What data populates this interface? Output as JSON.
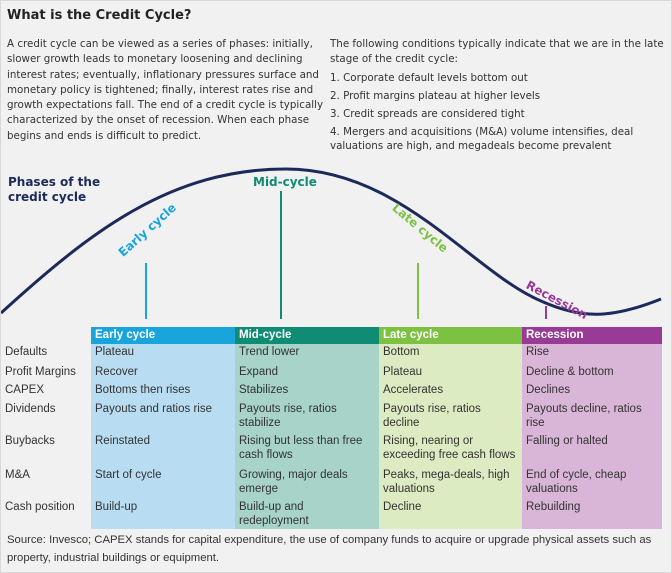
{
  "title": "What is the Credit Cycle?",
  "intro": "A credit cycle can be viewed as a series of phases: initially, slower growth leads to monetary loosening and declining interest rates; eventually, inflationary pressures surface and monetary policy is tightened; finally, interest rates rise and growth expectations fall. The end of a credit cycle is typically characterized by the onset of recession. When each phase begins and ends is difficult to predict.",
  "conditions": {
    "lead": "The following conditions typically indicate that we are in the late stage of the credit cycle:",
    "items": [
      "1. Corporate default levels bottom out",
      "2. Profit margins plateau at higher levels",
      "3. Credit spreads are considered tight",
      "4. Mergers and acquisitions (M&A) volume intensifies, deal valuations are high, and megadeals become prevalent"
    ]
  },
  "diagram": {
    "title": "Phases of the credit cycle",
    "phases": [
      {
        "label": "Early cycle",
        "color": "#19a4dc"
      },
      {
        "label": "Mid-cycle",
        "color": "#108b74"
      },
      {
        "label": "Late cycle",
        "color": "#7dc143"
      },
      {
        "label": "Recession",
        "color": "#993b96"
      }
    ],
    "curve_color": "#1c2a5a"
  },
  "table": {
    "headers": [
      "Early cycle",
      "Mid-cycle",
      "Late cycle",
      "Recession"
    ],
    "rows": [
      {
        "label": "Defaults",
        "cells": [
          "Plateau",
          "Trend lower",
          "Bottom",
          "Rise"
        ]
      },
      {
        "label": "Profit Margins",
        "cells": [
          "Recover",
          "Expand",
          "Plateau",
          "Decline & bottom"
        ]
      },
      {
        "label": "CAPEX",
        "cells": [
          "Bottoms then rises",
          "Stabilizes",
          "Accelerates",
          "Declines"
        ]
      },
      {
        "label": "Dividends",
        "cells": [
          "Payouts and ratios rise",
          "Payouts rise, ratios stabilize",
          "Payouts rise, ratios decline",
          "Payouts decline, ratios rise"
        ]
      },
      {
        "label": "Buybacks",
        "cells": [
          "Reinstated",
          "Rising but less than free cash flows",
          "Rising, nearing or exceeding free cash flows",
          "Falling or halted"
        ]
      },
      {
        "label": "M&A",
        "cells": [
          "Start of cycle",
          "Growing, major deals emerge",
          "Peaks, mega-deals, high valuations",
          "End of cycle, cheap valuations"
        ]
      },
      {
        "label": "Cash position",
        "cells": [
          "Build-up",
          "Build-up and redeployment",
          "Decline",
          "Rebuilding"
        ]
      }
    ]
  },
  "footnote": "Source: Invesco; CAPEX stands for capital expenditure, the use of company funds to acquire or upgrade physical assets such as property, industrial buildings or equipment."
}
